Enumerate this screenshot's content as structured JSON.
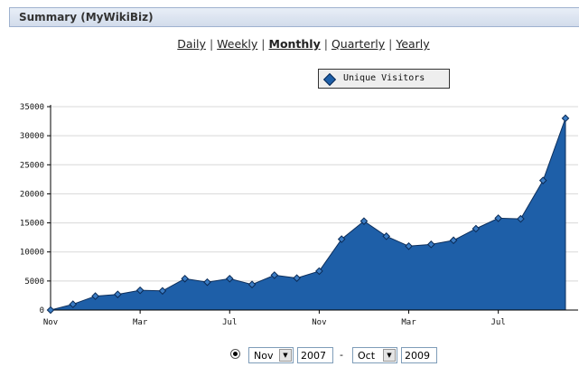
{
  "header": {
    "title": "Summary (MyWikiBiz)"
  },
  "periods": [
    {
      "label": "Daily",
      "active": false
    },
    {
      "label": "Weekly",
      "active": false
    },
    {
      "label": "Monthly",
      "active": true
    },
    {
      "label": "Quarterly",
      "active": false
    },
    {
      "label": "Yearly",
      "active": false
    }
  ],
  "range": {
    "from_month": "Nov",
    "from_year": "2007",
    "separator": "-",
    "to_month": "Oct",
    "to_year": "2009"
  },
  "chart_data": {
    "type": "area",
    "series": [
      {
        "name": "Unique Visitors",
        "color": "#1e5fa8",
        "x": [
          "2007-11",
          "2007-12",
          "2008-01",
          "2008-02",
          "2008-03",
          "2008-04",
          "2008-05",
          "2008-06",
          "2008-07",
          "2008-08",
          "2008-09",
          "2008-10",
          "2008-11",
          "2008-12",
          "2009-01",
          "2009-02",
          "2009-03",
          "2009-04",
          "2009-05",
          "2009-06",
          "2009-07",
          "2009-08",
          "2009-09",
          "2009-10"
        ],
        "values": [
          0,
          1000,
          2400,
          2700,
          3400,
          3300,
          5400,
          4800,
          5400,
          4400,
          6000,
          5500,
          6700,
          12200,
          15300,
          12700,
          11000,
          11300,
          12000,
          14000,
          15800,
          15700,
          22300,
          33000
        ]
      }
    ],
    "xtick_labels": [
      "Nov",
      "Mar",
      "Jul",
      "Nov",
      "Mar",
      "Jul"
    ],
    "xtick_index": [
      0,
      4,
      8,
      12,
      16,
      20
    ],
    "ylim": [
      0,
      35000
    ],
    "yticks": [
      0,
      5000,
      10000,
      15000,
      20000,
      25000,
      30000,
      35000
    ],
    "grid": true,
    "legend": "top-right"
  }
}
